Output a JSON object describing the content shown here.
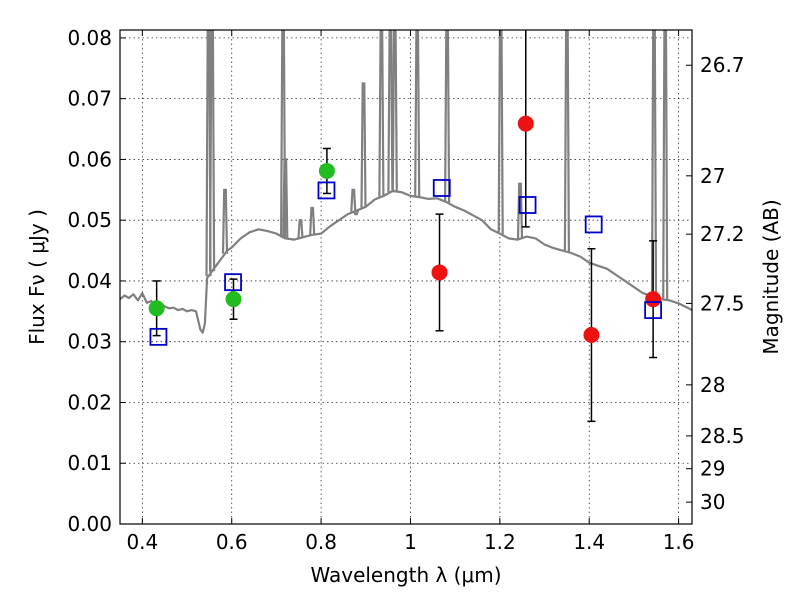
{
  "chart_data": {
    "type": "scatter",
    "title": "",
    "xlabel": "Wavelength  λ (μm)",
    "ylabel": "Flux  Fν  ( μJy )",
    "ylabel_right": "Magnitude (AB)",
    "xlim": [
      0.35,
      1.63
    ],
    "ylim": [
      0.0,
      0.0813
    ],
    "grid": true,
    "x_ticks": [
      0.4,
      0.6,
      0.8,
      1.0,
      1.2,
      1.4,
      1.6
    ],
    "x_tick_labels": [
      "0.4",
      "0.6",
      "0.8",
      "1",
      "1.2",
      "1.4",
      "1.6"
    ],
    "y_ticks": [
      0.0,
      0.01,
      0.02,
      0.03,
      0.04,
      0.05,
      0.06,
      0.07,
      0.08
    ],
    "y_tick_labels": [
      "0.00",
      "0.01",
      "0.02",
      "0.03",
      "0.04",
      "0.05",
      "0.06",
      "0.07",
      "0.08"
    ],
    "right_ticks": [
      {
        "flux": 0.0755,
        "label": "26.7"
      },
      {
        "flux": 0.0573,
        "label": "27"
      },
      {
        "flux": 0.0477,
        "label": "27.2"
      },
      {
        "flux": 0.0363,
        "label": "27.5"
      },
      {
        "flux": 0.0229,
        "label": "28"
      },
      {
        "flux": 0.0145,
        "label": "28.5"
      },
      {
        "flux": 0.0091,
        "label": "29"
      },
      {
        "flux": 0.0036,
        "label": "30"
      }
    ],
    "series": [
      {
        "kind": "template-spectrum",
        "color": "#808080",
        "x": [
          0.35,
          0.36,
          0.37,
          0.38,
          0.39,
          0.4,
          0.41,
          0.42,
          0.43,
          0.44,
          0.45,
          0.46,
          0.47,
          0.48,
          0.49,
          0.5,
          0.51,
          0.52,
          0.53,
          0.535,
          0.54,
          0.545,
          0.55,
          0.56,
          0.57,
          0.58,
          0.59,
          0.6,
          0.62,
          0.64,
          0.66,
          0.68,
          0.7,
          0.72,
          0.74,
          0.76,
          0.78,
          0.8,
          0.82,
          0.84,
          0.86,
          0.88,
          0.9,
          0.92,
          0.94,
          0.96,
          0.98,
          1.0,
          1.02,
          1.04,
          1.06,
          1.08,
          1.1,
          1.12,
          1.14,
          1.16,
          1.18,
          1.2,
          1.22,
          1.24,
          1.26,
          1.28,
          1.3,
          1.32,
          1.34,
          1.36,
          1.38,
          1.4,
          1.42,
          1.44,
          1.46,
          1.48,
          1.5,
          1.52,
          1.54,
          1.56,
          1.58,
          1.6,
          1.62,
          1.63
        ],
        "values": [
          0.037,
          0.0376,
          0.0372,
          0.0378,
          0.0368,
          0.038,
          0.0364,
          0.0367,
          0.036,
          0.0362,
          0.0358,
          0.0355,
          0.0356,
          0.0352,
          0.0354,
          0.035,
          0.0352,
          0.035,
          0.032,
          0.0315,
          0.033,
          0.0405,
          0.041,
          0.042,
          0.043,
          0.044,
          0.045,
          0.0455,
          0.047,
          0.048,
          0.0485,
          0.0482,
          0.0478,
          0.047,
          0.0468,
          0.0472,
          0.0476,
          0.0478,
          0.049,
          0.05,
          0.051,
          0.0516,
          0.0522,
          0.0534,
          0.054,
          0.0548,
          0.0546,
          0.054,
          0.0538,
          0.0535,
          0.0536,
          0.053,
          0.0522,
          0.0516,
          0.0508,
          0.05,
          0.0485,
          0.0478,
          0.047,
          0.0468,
          0.0473,
          0.047,
          0.046,
          0.0454,
          0.045,
          0.0446,
          0.044,
          0.043,
          0.0425,
          0.042,
          0.041,
          0.04,
          0.039,
          0.038,
          0.0375,
          0.037,
          0.0368,
          0.0363,
          0.0356,
          0.0352
        ]
      },
      {
        "kind": "emission-lines",
        "color": "#808080",
        "lines": [
          {
            "x": 0.548,
            "peak": 0.0813
          },
          {
            "x": 0.556,
            "peak": 0.0813
          },
          {
            "x": 0.585,
            "peak": 0.055
          },
          {
            "x": 0.715,
            "peak": 0.0813
          },
          {
            "x": 0.72,
            "peak": 0.06
          },
          {
            "x": 0.754,
            "peak": 0.05
          },
          {
            "x": 0.78,
            "peak": 0.052
          },
          {
            "x": 0.872,
            "peak": 0.055
          },
          {
            "x": 0.878,
            "peak": 0.051
          },
          {
            "x": 0.895,
            "peak": 0.0725
          },
          {
            "x": 0.935,
            "peak": 0.0813
          },
          {
            "x": 0.955,
            "peak": 0.0813
          },
          {
            "x": 0.965,
            "peak": 0.0813
          },
          {
            "x": 1.015,
            "peak": 0.0813
          },
          {
            "x": 1.082,
            "peak": 0.0813
          },
          {
            "x": 1.202,
            "peak": 0.0813
          },
          {
            "x": 1.245,
            "peak": 0.056
          },
          {
            "x": 1.35,
            "peak": 0.0813
          },
          {
            "x": 1.545,
            "peak": 0.0813
          },
          {
            "x": 1.57,
            "peak": 0.0813
          }
        ]
      },
      {
        "kind": "points",
        "marker": "circle",
        "color": "#22bb22",
        "x": [
          0.432,
          0.604,
          0.813
        ],
        "values": [
          0.0355,
          0.037,
          0.0581
        ],
        "err": [
          0.0045,
          0.0033,
          0.0037
        ]
      },
      {
        "kind": "points",
        "marker": "circle",
        "color": "#ee1111",
        "x": [
          1.065,
          1.258,
          1.405,
          1.543
        ],
        "values": [
          0.0414,
          0.0659,
          0.0311,
          0.037
        ],
        "err": [
          0.0096,
          0.017,
          0.0142,
          0.0096
        ]
      },
      {
        "kind": "points",
        "marker": "square",
        "color": "#0000cc",
        "x": [
          0.436,
          0.603,
          0.812,
          1.07,
          1.262,
          1.41,
          1.543
        ],
        "values": [
          0.0308,
          0.0398,
          0.0549,
          0.0553,
          0.0525,
          0.0493,
          0.0352
        ]
      }
    ]
  }
}
